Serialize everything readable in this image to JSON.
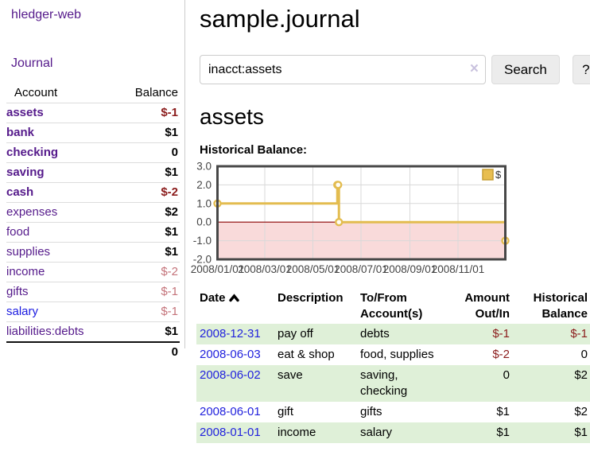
{
  "sidebar": {
    "brand": "hledger-web",
    "journal_link": "Journal",
    "accounts_table": {
      "account_header": "Account",
      "balance_header": "Balance",
      "accounts": [
        {
          "name": "assets",
          "depth": 1,
          "balance": "$-1",
          "matched": true,
          "negative": true,
          "link_color": "purple"
        },
        {
          "name": "bank",
          "depth": 2,
          "balance": "$1",
          "matched": true,
          "negative": false,
          "link_color": "purple"
        },
        {
          "name": "checking",
          "depth": 3,
          "balance": "0",
          "matched": true,
          "negative": false,
          "link_color": "purple"
        },
        {
          "name": "saving",
          "depth": 3,
          "balance": "$1",
          "matched": true,
          "negative": false,
          "link_color": "purple"
        },
        {
          "name": "cash",
          "depth": 2,
          "balance": "$-2",
          "matched": true,
          "negative": true,
          "link_color": "purple"
        },
        {
          "name": "expenses",
          "depth": 1,
          "balance": "$2",
          "matched": false,
          "negative": false,
          "link_color": "purple"
        },
        {
          "name": "food",
          "depth": 2,
          "balance": "$1",
          "matched": false,
          "negative": false,
          "link_color": "purple"
        },
        {
          "name": "supplies",
          "depth": 2,
          "balance": "$1",
          "matched": false,
          "negative": false,
          "link_color": "purple"
        },
        {
          "name": "income",
          "depth": 1,
          "balance": "$-2",
          "matched": false,
          "negative": true,
          "link_color": "purple"
        },
        {
          "name": "gifts",
          "depth": 2,
          "balance": "$-1",
          "matched": false,
          "negative": true,
          "link_color": "purple"
        },
        {
          "name": "salary",
          "depth": 2,
          "balance": "$-1",
          "matched": false,
          "negative": true,
          "link_color": "blue"
        },
        {
          "name": "liabilities:debts",
          "depth": 1,
          "balance": "$1",
          "matched": false,
          "negative": false,
          "link_color": "purple"
        }
      ],
      "total": "0"
    }
  },
  "header": {
    "title": "sample.journal"
  },
  "search": {
    "value": "inacct:assets",
    "clear_icon": "×",
    "button_label": "Search",
    "help_label": "?"
  },
  "register": {
    "account_heading": "assets",
    "chart_title": "Historical Balance:"
  },
  "chart_data": {
    "type": "line",
    "title": "Historical Balance",
    "step": true,
    "xlim_days": [
      0,
      365
    ],
    "ylim": [
      -2,
      3
    ],
    "x_ticks": [
      "2008/01/01",
      "2008/03/01",
      "2008/05/01",
      "2008/07/01",
      "2008/09/01",
      "2008/11/01"
    ],
    "x_tick_days": [
      0,
      60,
      121,
      182,
      244,
      305
    ],
    "y_ticks": [
      3,
      2,
      1,
      0,
      -1,
      -2
    ],
    "y_tick_labels": [
      "3.0",
      "2.0",
      "1.0",
      "0.0",
      "-1.0",
      "-2.0"
    ],
    "series": [
      {
        "name": "$",
        "color": "#e3bc4f",
        "points": [
          {
            "date": "2008-01-01",
            "day": 0,
            "value": 1
          },
          {
            "date": "2008-06-01",
            "day": 152,
            "value": 2
          },
          {
            "date": "2008-06-02",
            "day": 153,
            "value": 2
          },
          {
            "date": "2008-06-03",
            "day": 154,
            "value": 0
          },
          {
            "date": "2008-12-31",
            "day": 365,
            "value": -1
          }
        ]
      }
    ],
    "legend": {
      "label": "$",
      "swatch_color": "#e8be50",
      "position": "top-right"
    },
    "below_zero_fill": "#f9dada",
    "zero_line_color": "#8b0000",
    "grid": true
  },
  "transactions": {
    "headers": {
      "date": "Date",
      "description": "Description",
      "accounts": "To/From Account(s)",
      "amount": "Amount Out/In",
      "balance": "Historical Balance"
    },
    "sort": {
      "column": "date",
      "direction": "asc"
    },
    "rows": [
      {
        "date": "2008-12-31",
        "description": "pay off",
        "accounts": "debts",
        "amount": "$-1",
        "balance": "$-1",
        "amount_negative": true,
        "balance_negative": true
      },
      {
        "date": "2008-06-03",
        "description": "eat & shop",
        "accounts": "food, supplies",
        "amount": "$-2",
        "balance": "0",
        "amount_negative": true,
        "balance_negative": false
      },
      {
        "date": "2008-06-02",
        "description": "save",
        "accounts": "saving, checking",
        "amount": "0",
        "balance": "$2",
        "amount_negative": false,
        "balance_negative": false
      },
      {
        "date": "2008-06-01",
        "description": "gift",
        "accounts": "gifts",
        "amount": "$1",
        "balance": "$2",
        "amount_negative": false,
        "balance_negative": false
      },
      {
        "date": "2008-01-01",
        "description": "income",
        "accounts": "salary",
        "amount": "$1",
        "balance": "$1",
        "amount_negative": false,
        "balance_negative": false
      }
    ]
  },
  "colors": {
    "link_purple": "#551a8b",
    "link_blue": "#1a1ae0",
    "negative_strong": "#8b1c1c",
    "negative_soft": "#c4737a",
    "row_stripe_green": "#dff0d8",
    "chart_line_gold": "#e3bc4f",
    "below_zero_pink": "#f9dada",
    "zero_line_red": "#8b0000"
  }
}
